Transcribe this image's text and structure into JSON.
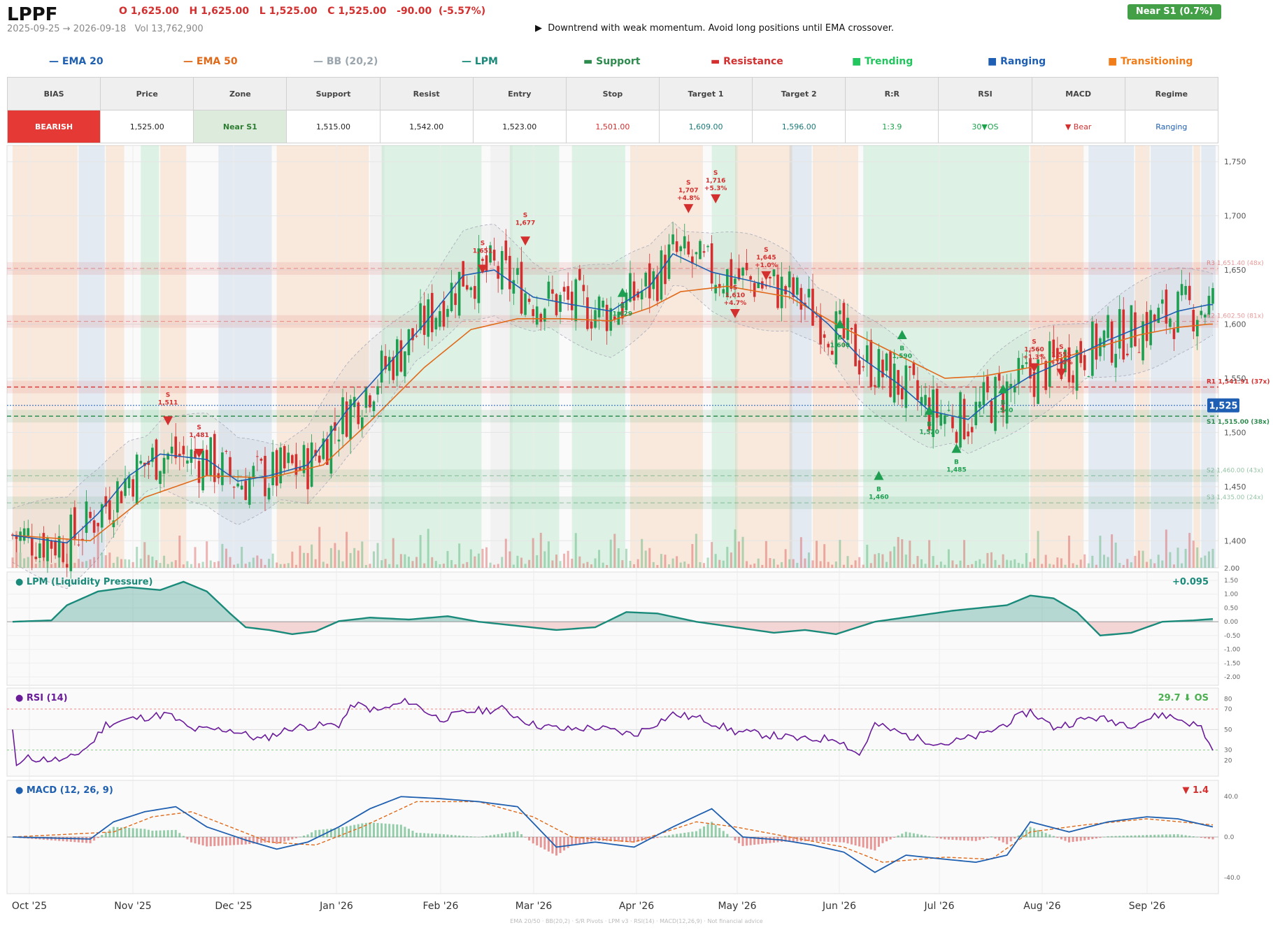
{
  "header": {
    "ticker": "LPPF",
    "ohlc": "O 1,625.00   H 1,625.00   L 1,525.00   C 1,525.00   -90.00  (-5.57%)",
    "range": "2025-09-25 → 2026-09-18",
    "vol": "Vol 13,762,900",
    "note": "Downtrend with weak momentum. Avoid long positions until EMA crossover.",
    "note_icon": "▶",
    "badge": "Near S1  (0.7%)"
  },
  "legend": [
    {
      "label": "EMA 20",
      "sym": "—",
      "color": "#1f5fb0"
    },
    {
      "label": "EMA 50",
      "sym": "—",
      "color": "#e06a1a"
    },
    {
      "label": "BB (20,2)",
      "sym": "—",
      "color": "#9aa5ad"
    },
    {
      "label": "LPM",
      "sym": "—",
      "color": "#1a8a7a"
    },
    {
      "label": "Support",
      "sym": "▬",
      "color": "#2e8b4e"
    },
    {
      "label": "Resistance",
      "sym": "▬",
      "color": "#d32f2f"
    },
    {
      "label": "Trending",
      "sym": "■",
      "color": "#22c55e"
    },
    {
      "label": "Ranging",
      "sym": "■",
      "color": "#1e5fb4"
    },
    {
      "label": "Transitioning",
      "sym": "■",
      "color": "#f07d1a"
    }
  ],
  "table": {
    "headers": [
      "BIAS",
      "Price",
      "Zone",
      "Support",
      "Resist",
      "Entry",
      "Stop",
      "Target 1",
      "Target 2",
      "R:R",
      "RSI",
      "MACD",
      "Regime"
    ],
    "values": [
      "BEARISH",
      "1,525.00",
      "Near S1",
      "1,515.00",
      "1,542.00",
      "1,523.00",
      "1,501.00",
      "1,609.00",
      "1,596.00",
      "1:3.9",
      "30▼OS",
      "▼ Bear",
      "Ranging"
    ]
  },
  "chart_data": {
    "type": "candlestick",
    "price_axis": {
      "ticks": [
        "1,750",
        "1,700",
        "1,650",
        "1,600",
        "1,550",
        "1,500",
        "1,450",
        "1,400"
      ],
      "ylim": [
        1375,
        1765
      ]
    },
    "volume_axis_label": "2.00",
    "date_ticks": [
      "Oct '25",
      "Nov '25",
      "Dec '25",
      "Jan '26",
      "Feb '26",
      "Mar '26",
      "Apr '26",
      "May '26",
      "Jun '26",
      "Jul '26",
      "Aug '26",
      "Sep '26"
    ],
    "last_price_label": "1,525",
    "levels": [
      {
        "label": "R3 1,651.40 (48x)",
        "value": 1651.4,
        "kind": "resistance"
      },
      {
        "label": "R2 1,602.50 (81x)",
        "value": 1602.5,
        "kind": "resistance"
      },
      {
        "label": "R1 1,541.91 (37x)",
        "value": 1541.91,
        "kind": "resistance"
      },
      {
        "label": "S1 1,515.00 (38x)",
        "value": 1515,
        "kind": "support"
      },
      {
        "label": "S2 1,460.00 (43x)",
        "value": 1460,
        "kind": "support"
      },
      {
        "label": "S3 1,435.00 (24x)",
        "value": 1435,
        "kind": "support"
      }
    ],
    "ema20_keypoints": [
      [
        0,
        1405
      ],
      [
        14,
        1398
      ],
      [
        22,
        1425
      ],
      [
        30,
        1460
      ],
      [
        38,
        1480
      ],
      [
        50,
        1475
      ],
      [
        58,
        1455
      ],
      [
        66,
        1460
      ],
      [
        76,
        1470
      ],
      [
        86,
        1520
      ],
      [
        96,
        1560
      ],
      [
        106,
        1600
      ],
      [
        116,
        1645
      ],
      [
        124,
        1650
      ],
      [
        134,
        1625
      ],
      [
        144,
        1618
      ],
      [
        154,
        1612
      ],
      [
        164,
        1635
      ],
      [
        170,
        1665
      ],
      [
        180,
        1648
      ],
      [
        190,
        1640
      ],
      [
        200,
        1630
      ],
      [
        210,
        1600
      ],
      [
        218,
        1570
      ],
      [
        228,
        1545
      ],
      [
        236,
        1520
      ],
      [
        246,
        1512
      ],
      [
        252,
        1530
      ],
      [
        262,
        1552
      ],
      [
        272,
        1568
      ],
      [
        282,
        1585
      ],
      [
        292,
        1600
      ],
      [
        300,
        1612
      ],
      [
        308,
        1618
      ]
    ],
    "ema50_keypoints": [
      [
        0,
        1405
      ],
      [
        20,
        1400
      ],
      [
        34,
        1440
      ],
      [
        50,
        1460
      ],
      [
        66,
        1458
      ],
      [
        80,
        1470
      ],
      [
        92,
        1510
      ],
      [
        106,
        1560
      ],
      [
        118,
        1595
      ],
      [
        130,
        1605
      ],
      [
        142,
        1605
      ],
      [
        154,
        1603
      ],
      [
        164,
        1615
      ],
      [
        172,
        1630
      ],
      [
        184,
        1635
      ],
      [
        200,
        1625
      ],
      [
        212,
        1600
      ],
      [
        226,
        1575
      ],
      [
        240,
        1550
      ],
      [
        250,
        1552
      ],
      [
        262,
        1560
      ],
      [
        276,
        1575
      ],
      [
        290,
        1590
      ],
      [
        300,
        1597
      ],
      [
        308,
        1600
      ]
    ],
    "signals": [
      {
        "type": "S",
        "price": "1,511",
        "i": 40
      },
      {
        "type": "S",
        "price": "1,481",
        "i": 48
      },
      {
        "type": "S",
        "price": "1,651",
        "i": 121
      },
      {
        "type": "S",
        "price": "1,677",
        "i": 132
      },
      {
        "type": "B",
        "price": "1,629",
        "i": 157
      },
      {
        "type": "S",
        "price": "1,707",
        "pct": "+4.8%",
        "i": 174
      },
      {
        "type": "S",
        "price": "1,716",
        "pct": "+5.3%",
        "i": 181
      },
      {
        "type": "S",
        "price": "1,610",
        "pct": "+4.7%",
        "i": 186
      },
      {
        "type": "S",
        "price": "1,645",
        "pct": "+1.0%",
        "i": 194
      },
      {
        "type": "B",
        "price": "1,600",
        "i": 213
      },
      {
        "type": "B",
        "price": "1,460",
        "i": 223
      },
      {
        "type": "B",
        "price": "1,590",
        "i": 229
      },
      {
        "type": "B",
        "price": "1,520",
        "i": 236
      },
      {
        "type": "B",
        "price": "1,485",
        "i": 243
      },
      {
        "type": "B",
        "price": "1,540",
        "i": 255
      },
      {
        "type": "S",
        "price": "1,560",
        "pct": "+1.3%",
        "i": 263
      },
      {
        "type": "S",
        "price": "1,555",
        "pct": "+1.0%",
        "i": 270
      }
    ],
    "regimes": [
      [
        0,
        16,
        "transitioning"
      ],
      [
        17,
        23,
        "ranging"
      ],
      [
        24,
        28,
        "transitioning"
      ],
      [
        33,
        37,
        "trending"
      ],
      [
        38,
        44,
        "transitioning"
      ],
      [
        53,
        66,
        "ranging"
      ],
      [
        68,
        91,
        "transitioning"
      ],
      [
        92,
        95,
        "neutral"
      ],
      [
        95,
        120,
        "trending"
      ],
      [
        123,
        128,
        "neutral"
      ],
      [
        128,
        140,
        "trending"
      ],
      [
        144,
        157,
        "trending"
      ],
      [
        159,
        177,
        "transitioning"
      ],
      [
        180,
        186,
        "trending"
      ],
      [
        186,
        200,
        "transitioning"
      ],
      [
        200,
        205,
        "ranging"
      ],
      [
        206,
        217,
        "transitioning"
      ],
      [
        219,
        261,
        "trending"
      ],
      [
        262,
        275,
        "transitioning"
      ],
      [
        277,
        288,
        "ranging"
      ],
      [
        289,
        292,
        "transitioning"
      ],
      [
        293,
        303,
        "ranging"
      ],
      [
        304,
        305,
        "transitioning"
      ],
      [
        306,
        309,
        "ranging"
      ]
    ],
    "lpm": {
      "title": "LPM (Liquidity Pressure)",
      "value": "+0.095",
      "ticks": [
        "1.50",
        "1.00",
        "0.50",
        "0.00",
        "-0.50",
        "-1.00",
        "-1.50",
        "-2.00"
      ],
      "ylim": [
        -2,
        1.5
      ],
      "keypoints": [
        [
          0,
          0
        ],
        [
          10,
          0.05
        ],
        [
          14,
          0.6
        ],
        [
          22,
          1.1
        ],
        [
          30,
          1.25
        ],
        [
          38,
          1.15
        ],
        [
          44,
          1.45
        ],
        [
          50,
          1.1
        ],
        [
          56,
          0.3
        ],
        [
          60,
          -0.2
        ],
        [
          66,
          -0.3
        ],
        [
          72,
          -0.45
        ],
        [
          78,
          -0.35
        ],
        [
          84,
          0.02
        ],
        [
          92,
          0.15
        ],
        [
          102,
          0.08
        ],
        [
          112,
          0.2
        ],
        [
          120,
          0
        ],
        [
          130,
          -0.15
        ],
        [
          140,
          -0.3
        ],
        [
          150,
          -0.2
        ],
        [
          158,
          0.35
        ],
        [
          166,
          0.3
        ],
        [
          176,
          0
        ],
        [
          186,
          -0.2
        ],
        [
          196,
          -0.4
        ],
        [
          204,
          -0.3
        ],
        [
          212,
          -0.45
        ],
        [
          222,
          0
        ],
        [
          232,
          0.2
        ],
        [
          242,
          0.4
        ],
        [
          256,
          0.6
        ],
        [
          262,
          0.95
        ],
        [
          268,
          0.85
        ],
        [
          274,
          0.35
        ],
        [
          280,
          -0.5
        ],
        [
          288,
          -0.4
        ],
        [
          296,
          0
        ],
        [
          304,
          0.05
        ],
        [
          309,
          0.1
        ]
      ]
    },
    "rsi": {
      "title": "RSI (14)",
      "value": "29.7 ⬇ OS",
      "ticks": [
        "80",
        "70",
        "50",
        "30",
        "20"
      ],
      "ylim": [
        10,
        85
      ],
      "keypoints": [
        [
          0,
          50
        ],
        [
          1,
          15
        ],
        [
          4,
          22
        ],
        [
          14,
          20
        ],
        [
          20,
          35
        ],
        [
          24,
          55
        ],
        [
          30,
          60
        ],
        [
          40,
          65
        ],
        [
          46,
          50
        ],
        [
          56,
          50
        ],
        [
          64,
          40
        ],
        [
          72,
          52
        ],
        [
          84,
          55
        ],
        [
          88,
          75
        ],
        [
          94,
          68
        ],
        [
          102,
          78
        ],
        [
          110,
          60
        ],
        [
          118,
          68
        ],
        [
          126,
          70
        ],
        [
          134,
          55
        ],
        [
          142,
          50
        ],
        [
          150,
          52
        ],
        [
          160,
          45
        ],
        [
          170,
          65
        ],
        [
          178,
          60
        ],
        [
          186,
          48
        ],
        [
          194,
          45
        ],
        [
          204,
          40
        ],
        [
          212,
          42
        ],
        [
          218,
          25
        ],
        [
          222,
          55
        ],
        [
          232,
          42
        ],
        [
          240,
          36
        ],
        [
          250,
          45
        ],
        [
          262,
          68
        ],
        [
          268,
          52
        ],
        [
          278,
          62
        ],
        [
          288,
          55
        ],
        [
          296,
          65
        ],
        [
          302,
          58
        ],
        [
          306,
          52
        ],
        [
          309,
          29.7
        ]
      ]
    },
    "macd": {
      "title": "MACD (12, 26, 9)",
      "value": "▼ 1.4",
      "ticks": [
        "40.0",
        "0.0",
        "-40.0"
      ],
      "ylim": [
        -45,
        45
      ],
      "keypoints": [
        [
          0,
          0
        ],
        [
          20,
          -2
        ],
        [
          26,
          15
        ],
        [
          34,
          25
        ],
        [
          42,
          30
        ],
        [
          50,
          10
        ],
        [
          60,
          -3
        ],
        [
          68,
          -12
        ],
        [
          76,
          -5
        ],
        [
          84,
          10
        ],
        [
          92,
          28
        ],
        [
          100,
          40
        ],
        [
          110,
          38
        ],
        [
          120,
          35
        ],
        [
          130,
          30
        ],
        [
          140,
          -10
        ],
        [
          150,
          -5
        ],
        [
          160,
          -10
        ],
        [
          170,
          10
        ],
        [
          180,
          28
        ],
        [
          188,
          0
        ],
        [
          198,
          -3
        ],
        [
          206,
          -8
        ],
        [
          214,
          -15
        ],
        [
          222,
          -35
        ],
        [
          230,
          -18
        ],
        [
          240,
          -22
        ],
        [
          248,
          -25
        ],
        [
          256,
          -18
        ],
        [
          262,
          15
        ],
        [
          272,
          5
        ],
        [
          282,
          15
        ],
        [
          292,
          20
        ],
        [
          300,
          18
        ],
        [
          309,
          10
        ]
      ],
      "signal_keypoints": [
        [
          0,
          0
        ],
        [
          26,
          5
        ],
        [
          36,
          20
        ],
        [
          46,
          25
        ],
        [
          56,
          10
        ],
        [
          66,
          -5
        ],
        [
          78,
          -8
        ],
        [
          90,
          10
        ],
        [
          104,
          35
        ],
        [
          120,
          35
        ],
        [
          134,
          20
        ],
        [
          144,
          0
        ],
        [
          160,
          -5
        ],
        [
          176,
          15
        ],
        [
          186,
          10
        ],
        [
          200,
          0
        ],
        [
          214,
          -10
        ],
        [
          224,
          -25
        ],
        [
          240,
          -20
        ],
        [
          252,
          -22
        ],
        [
          262,
          5
        ],
        [
          276,
          12
        ],
        [
          292,
          18
        ],
        [
          309,
          12
        ]
      ]
    },
    "footer": "EMA 20/50  ·  BB(20,2)  ·  S/R Pivots  ·  LPM v3  ·  RSI(14)  ·  MACD(12,26,9)  ·  Not financial advice"
  }
}
